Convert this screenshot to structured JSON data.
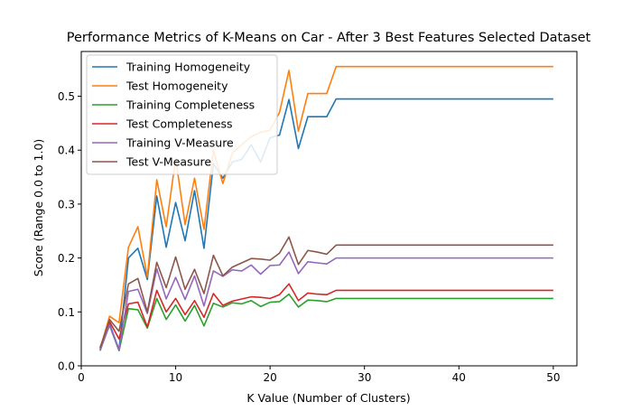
{
  "chart_data": {
    "type": "line",
    "title": "Performance Metrics of K-Means on Car - After 3 Best Features Selected Dataset",
    "xlabel": "K Value (Number of Clusters)",
    "ylabel": "Score (Range 0.0 to 1.0)",
    "xlim": [
      0,
      52.5
    ],
    "ylim": [
      0.0,
      0.583
    ],
    "xticks": [
      0,
      10,
      20,
      30,
      40,
      50
    ],
    "yticks": [
      0.0,
      0.1,
      0.2,
      0.3,
      0.4,
      0.5
    ],
    "xtick_labels": [
      "0",
      "10",
      "20",
      "30",
      "40",
      "50"
    ],
    "ytick_labels": [
      "0.0",
      "0.1",
      "0.2",
      "0.3",
      "0.4",
      "0.5"
    ],
    "grid": false,
    "legend_position": "top-left",
    "x": [
      2,
      3,
      4,
      5,
      6,
      7,
      8,
      9,
      10,
      11,
      12,
      13,
      14,
      15,
      16,
      17,
      18,
      19,
      20,
      21,
      22,
      23,
      24,
      25,
      26,
      27,
      28,
      29,
      30,
      31,
      32,
      33,
      34,
      35,
      36,
      37,
      38,
      39,
      40,
      41,
      42,
      43,
      44,
      45,
      46,
      47,
      48,
      49,
      50
    ],
    "series": [
      {
        "name": "Training Homogeneity",
        "color": "#1f77b4",
        "values": [
          0.028,
          0.078,
          0.03,
          0.2,
          0.218,
          0.16,
          0.315,
          0.22,
          0.303,
          0.232,
          0.325,
          0.218,
          0.375,
          0.348,
          0.378,
          0.383,
          0.41,
          0.378,
          0.423,
          0.428,
          0.494,
          0.403,
          0.462,
          0.462,
          0.462,
          0.495,
          0.495,
          0.495,
          0.495,
          0.495,
          0.495,
          0.495,
          0.495,
          0.495,
          0.495,
          0.495,
          0.495,
          0.495,
          0.495,
          0.495,
          0.495,
          0.495,
          0.495,
          0.495,
          0.495,
          0.495,
          0.495,
          0.495,
          0.495
        ]
      },
      {
        "name": "Test Homogeneity",
        "color": "#ff7f0e",
        "values": [
          0.032,
          0.092,
          0.08,
          0.22,
          0.258,
          0.165,
          0.345,
          0.258,
          0.385,
          0.262,
          0.348,
          0.253,
          0.4,
          0.338,
          0.395,
          0.41,
          0.425,
          0.433,
          0.437,
          0.47,
          0.548,
          0.435,
          0.505,
          0.505,
          0.505,
          0.555,
          0.555,
          0.555,
          0.555,
          0.555,
          0.555,
          0.555,
          0.555,
          0.555,
          0.555,
          0.555,
          0.555,
          0.555,
          0.555,
          0.555,
          0.555,
          0.555,
          0.555,
          0.555,
          0.555,
          0.555,
          0.555,
          0.555,
          0.555
        ]
      },
      {
        "name": "Training Completeness",
        "color": "#2ca02c",
        "values": [
          0.03,
          0.075,
          0.028,
          0.106,
          0.104,
          0.07,
          0.125,
          0.086,
          0.113,
          0.083,
          0.112,
          0.074,
          0.116,
          0.109,
          0.117,
          0.115,
          0.121,
          0.11,
          0.118,
          0.119,
          0.133,
          0.109,
          0.122,
          0.121,
          0.119,
          0.125,
          0.125,
          0.125,
          0.125,
          0.125,
          0.125,
          0.125,
          0.125,
          0.125,
          0.125,
          0.125,
          0.125,
          0.125,
          0.125,
          0.125,
          0.125,
          0.125,
          0.125,
          0.125,
          0.125,
          0.125,
          0.125,
          0.125,
          0.125
        ]
      },
      {
        "name": "Test Completeness",
        "color": "#d62728",
        "values": [
          0.034,
          0.082,
          0.05,
          0.115,
          0.118,
          0.072,
          0.14,
          0.1,
          0.125,
          0.095,
          0.121,
          0.09,
          0.134,
          0.112,
          0.12,
          0.124,
          0.128,
          0.127,
          0.125,
          0.132,
          0.152,
          0.121,
          0.135,
          0.133,
          0.132,
          0.14,
          0.14,
          0.14,
          0.14,
          0.14,
          0.14,
          0.14,
          0.14,
          0.14,
          0.14,
          0.14,
          0.14,
          0.14,
          0.14,
          0.14,
          0.14,
          0.14,
          0.14,
          0.14,
          0.14,
          0.14,
          0.14,
          0.14,
          0.14
        ]
      },
      {
        "name": "Training V-Measure",
        "color": "#9467bd",
        "values": [
          0.029,
          0.076,
          0.029,
          0.138,
          0.142,
          0.097,
          0.18,
          0.124,
          0.164,
          0.123,
          0.167,
          0.111,
          0.176,
          0.166,
          0.178,
          0.176,
          0.187,
          0.17,
          0.186,
          0.187,
          0.211,
          0.171,
          0.193,
          0.191,
          0.189,
          0.2,
          0.2,
          0.2,
          0.2,
          0.2,
          0.2,
          0.2,
          0.2,
          0.2,
          0.2,
          0.2,
          0.2,
          0.2,
          0.2,
          0.2,
          0.2,
          0.2,
          0.2,
          0.2,
          0.2,
          0.2,
          0.2,
          0.2,
          0.2
        ]
      },
      {
        "name": "Test V-Measure",
        "color": "#8c564b",
        "values": [
          0.033,
          0.086,
          0.064,
          0.152,
          0.162,
          0.1,
          0.192,
          0.145,
          0.202,
          0.142,
          0.179,
          0.134,
          0.205,
          0.167,
          0.183,
          0.191,
          0.199,
          0.198,
          0.196,
          0.209,
          0.239,
          0.188,
          0.214,
          0.211,
          0.207,
          0.224,
          0.224,
          0.224,
          0.224,
          0.224,
          0.224,
          0.224,
          0.224,
          0.224,
          0.224,
          0.224,
          0.224,
          0.224,
          0.224,
          0.224,
          0.224,
          0.224,
          0.224,
          0.224,
          0.224,
          0.224,
          0.224,
          0.224,
          0.224
        ]
      }
    ]
  }
}
